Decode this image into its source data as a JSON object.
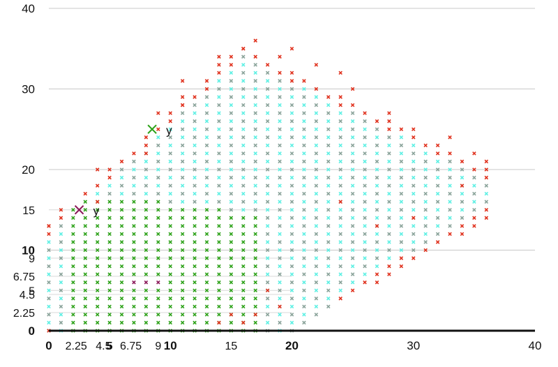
{
  "chart_data": {
    "type": "scatter",
    "title": "",
    "xlabel": "",
    "ylabel": "",
    "xlim": [
      0,
      40
    ],
    "ylim": [
      0,
      40
    ],
    "grid": true,
    "x_ticks_major": [
      "0",
      "10",
      "20",
      "30",
      "40"
    ],
    "y_ticks_major": [
      "0",
      "10",
      "20",
      "30",
      "40"
    ],
    "x_ticks_minor": [
      "2.25",
      "4.5",
      "5",
      "6.75",
      "9",
      "15"
    ],
    "y_ticks_minor": [
      "2.25",
      "4.5",
      "5",
      "6.75",
      "9",
      "15"
    ],
    "step": 1,
    "colors": {
      "red": "#e0321e",
      "cyan": "#5ff0e4",
      "green": "#2ea21a",
      "gray": "#8aa39a",
      "purple": "#8b1a5a",
      "grid": "#c8c8c8",
      "axis": "#111111"
    },
    "series": [
      {
        "marker": "cross",
        "color": "#e0321e",
        "bands": [
          [
            [
              0,
              13
            ]
          ],
          [
            [
              0,
              0
            ],
            [
              1,
              15
            ],
            [
              4,
              16
            ]
          ],
          [
            [
              4,
              20
            ],
            [
              8,
              22
            ],
            [
              11,
              28
            ]
          ],
          [
            [
              9,
              27
            ],
            [
              11,
              29
            ],
            [
              14,
              34
            ]
          ],
          [
            [
              11,
              31
            ],
            [
              14,
              33
            ],
            [
              17,
              36
            ]
          ],
          [
            [
              16,
              35
            ],
            [
              19,
              34
            ],
            [
              22,
              33
            ]
          ],
          [
            [
              20,
              35
            ],
            [
              24,
              32
            ],
            [
              30,
              25
            ]
          ],
          [
            [
              25,
              30
            ],
            [
              28,
              27
            ],
            [
              35,
              22
            ]
          ],
          [
            [
              33,
              24
            ],
            [
              36,
              21
            ],
            [
              34,
              18
            ]
          ],
          [
            [
              30,
              14
            ],
            [
              27,
              13
            ],
            [
              24,
              16
            ]
          ],
          [
            [
              18,
              5
            ],
            [
              19,
              3
            ],
            [
              17,
              2
            ]
          ],
          [
            [
              15,
              2
            ],
            [
              16,
              1
            ],
            [
              14,
              1
            ]
          ]
        ]
      }
    ],
    "annotations": [
      {
        "text": "y",
        "x": 8.5,
        "y": 25,
        "marker_color": "#2ea21a"
      },
      {
        "text": "y",
        "x": 2.5,
        "y": 15,
        "marker_color": "#8b1a5a"
      }
    ]
  }
}
